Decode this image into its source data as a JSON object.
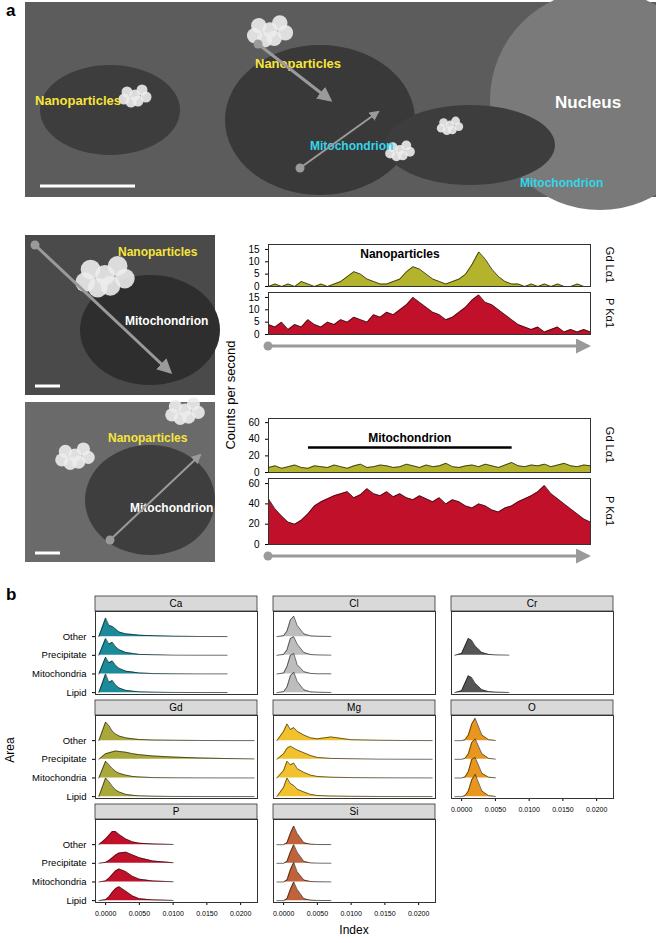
{
  "panel_labels": [
    "a",
    "b"
  ],
  "micrographs": [
    {
      "labels": [
        "Nanoparticles",
        "Nanoparticles",
        "Mitochondrion",
        "Mitochondrion",
        "Nucleus"
      ]
    },
    {
      "labels": [
        "Nanoparticles",
        "Mitochondrion"
      ]
    },
    {
      "labels": [
        "Nanoparticles",
        "Mitochondrion"
      ]
    }
  ],
  "chart_data": [
    {
      "type": "area",
      "y_label": "Counts per second",
      "tick_labels": "y",
      "xlim": [
        0,
        49
      ],
      "ylim": [
        0,
        17
      ],
      "yticks": [
        0,
        5,
        10,
        15
      ],
      "annotations": [
        {
          "text": "Nanoparticles",
          "x": 20,
          "y": 13
        }
      ],
      "series": [
        {
          "name": "Gd Lα1",
          "color": "#b3b32e",
          "values": [
            0,
            1,
            0,
            1,
            0,
            2,
            1,
            0,
            1,
            0,
            1,
            2,
            4,
            6,
            5,
            3,
            2,
            1,
            1,
            2,
            3,
            6,
            8,
            7,
            5,
            3,
            2,
            1,
            2,
            3,
            5,
            9,
            14,
            11,
            7,
            4,
            2,
            1,
            1,
            0,
            1,
            0,
            1,
            0,
            1,
            0,
            0,
            1,
            0,
            0
          ]
        },
        {
          "name": "P Kα1",
          "color": "#c0102a",
          "values": [
            4,
            3,
            5,
            2,
            4,
            3,
            6,
            4,
            3,
            5,
            4,
            6,
            5,
            7,
            6,
            5,
            8,
            7,
            9,
            8,
            10,
            12,
            15,
            13,
            11,
            9,
            8,
            6,
            7,
            9,
            11,
            14,
            16,
            13,
            12,
            10,
            8,
            6,
            4,
            3,
            2,
            3,
            1,
            2,
            3,
            1,
            2,
            1,
            2,
            1
          ]
        }
      ]
    },
    {
      "type": "area",
      "tick_labels": "y",
      "xlim": [
        0,
        49
      ],
      "ylim": [
        0,
        65
      ],
      "yticks": [
        0,
        20,
        40,
        60
      ],
      "annotations": [
        {
          "text": "Mitochondrion",
          "x": [
            6,
            37
          ],
          "y": 30
        }
      ],
      "series": [
        {
          "name": "Gd Lα1",
          "color": "#b3b32e",
          "values": [
            6,
            8,
            5,
            7,
            9,
            6,
            5,
            8,
            7,
            6,
            9,
            7,
            5,
            8,
            10,
            6,
            7,
            9,
            8,
            6,
            7,
            10,
            8,
            6,
            9,
            7,
            8,
            11,
            7,
            6,
            8,
            9,
            7,
            10,
            8,
            6,
            9,
            12,
            8,
            7,
            9,
            8,
            10,
            7,
            9,
            11,
            8,
            7,
            9,
            8
          ]
        },
        {
          "name": "P Kα1",
          "color": "#c0102a",
          "values": [
            45,
            35,
            28,
            22,
            20,
            24,
            30,
            38,
            42,
            45,
            48,
            50,
            52,
            46,
            49,
            55,
            50,
            48,
            52,
            47,
            50,
            46,
            44,
            48,
            45,
            42,
            46,
            40,
            44,
            42,
            38,
            36,
            40,
            38,
            34,
            32,
            36,
            38,
            42,
            45,
            48,
            52,
            58,
            50,
            45,
            40,
            35,
            30,
            25,
            22
          ]
        }
      ]
    },
    {
      "type": "ridgeline",
      "x_label": "Index",
      "y_label": "Area",
      "categories": [
        "Other",
        "Precipitate",
        "Mitochondria",
        "Lipid"
      ],
      "x": [
        -0.001,
        0,
        0.0005,
        0.001,
        0.0015,
        0.002,
        0.003,
        0.004,
        0.005,
        0.007,
        0.01,
        0.014,
        0.018,
        0.022
      ],
      "xlim": [
        -0.0015,
        0.0225
      ],
      "xticks": [
        {
          "value": 0,
          "label": "0.0000"
        },
        {
          "value": 0.005,
          "label": "0.0050"
        },
        {
          "value": 0.01,
          "label": "0.0100"
        },
        {
          "value": 0.015,
          "label": "0.0150"
        },
        {
          "value": 0.02,
          "label": "0.0200"
        }
      ],
      "panels": [
        {
          "name": "Ca",
          "color": "#1b8a99",
          "series": [
            {
              "name": "Other",
              "values": [
                0,
                1.0,
                0.6,
                0.55,
                0.4,
                0.25,
                0.15,
                0.12,
                0.08,
                0.05,
                0.02,
                0.01,
                0.005,
                null
              ]
            },
            {
              "name": "Precipitate",
              "values": [
                0,
                0.9,
                0.6,
                0.7,
                0.45,
                0.3,
                0.15,
                0.1,
                0.05,
                0.03,
                0.01,
                0.005,
                0.005,
                null
              ]
            },
            {
              "name": "Mitochondria",
              "values": [
                0,
                0.9,
                0.6,
                0.7,
                0.45,
                0.3,
                0.15,
                0.1,
                0.05,
                0.02,
                0.01,
                0.005,
                0.005,
                null
              ]
            },
            {
              "name": "Lipid",
              "values": [
                0,
                1.0,
                0.55,
                0.65,
                0.4,
                0.25,
                0.12,
                0.08,
                0.04,
                0.02,
                0.01,
                0.005,
                0.005,
                null
              ]
            }
          ]
        },
        {
          "name": "Cl",
          "color": "#bdbdbd",
          "series": [
            {
              "name": "Other",
              "values": [
                0,
                0.05,
                0.3,
                0.9,
                1.1,
                0.6,
                0.15,
                0.04,
                0.02,
                0.01,
                null,
                null,
                null,
                null
              ]
            },
            {
              "name": "Precipitate",
              "values": [
                0,
                0.05,
                0.3,
                0.9,
                1.0,
                0.6,
                0.15,
                0.04,
                0.02,
                0.01,
                null,
                null,
                null,
                null
              ]
            },
            {
              "name": "Mitochondria",
              "values": [
                0,
                0.05,
                0.4,
                1.0,
                1.1,
                0.5,
                0.12,
                0.03,
                0.01,
                0.01,
                null,
                null,
                null,
                null
              ]
            },
            {
              "name": "Lipid",
              "values": [
                0,
                0.05,
                0.3,
                0.9,
                1.1,
                0.6,
                0.15,
                0.04,
                0.02,
                0.01,
                null,
                null,
                null,
                null
              ]
            }
          ]
        },
        {
          "name": "Cr",
          "color": "#555555",
          "series": [
            {
              "name": "Precipitate",
              "values": [
                0,
                0.1,
                0.5,
                0.9,
                0.8,
                0.5,
                0.15,
                0.05,
                0.02,
                0.01,
                null,
                null,
                null,
                null
              ]
            },
            {
              "name": "Lipid",
              "values": [
                0,
                0.1,
                0.5,
                0.9,
                0.8,
                0.5,
                0.15,
                0.05,
                0.02,
                0.01,
                null,
                null,
                null,
                null
              ]
            }
          ]
        },
        {
          "name": "Gd",
          "color": "#a9a83a",
          "series": [
            {
              "name": "Other",
              "values": [
                0,
                1.0,
                0.8,
                0.5,
                0.35,
                0.25,
                0.15,
                0.1,
                0.06,
                0.03,
                0.02,
                0.01,
                0.005,
                0.003
              ]
            },
            {
              "name": "Precipitate",
              "values": [
                0,
                0.3,
                0.35,
                0.4,
                0.45,
                0.42,
                0.38,
                0.3,
                0.25,
                0.18,
                0.12,
                0.07,
                0.04,
                0.02
              ]
            },
            {
              "name": "Mitochondria",
              "values": [
                0,
                0.9,
                0.7,
                0.5,
                0.35,
                0.25,
                0.15,
                0.08,
                0.05,
                0.02,
                0.01,
                0.005,
                0.003,
                0.002
              ]
            },
            {
              "name": "Lipid",
              "values": [
                0,
                1.0,
                0.8,
                0.55,
                0.35,
                0.25,
                0.12,
                0.07,
                0.04,
                0.02,
                0.01,
                0.005,
                0.003,
                0.002
              ]
            }
          ]
        },
        {
          "name": "Mg",
          "color": "#f2c12e",
          "series": [
            {
              "name": "Other",
              "values": [
                0,
                0.5,
                0.9,
                0.6,
                0.7,
                0.5,
                0.3,
                0.15,
                0.1,
                0.2,
                0.05,
                0.02,
                0.01,
                0.005
              ]
            },
            {
              "name": "Precipitate",
              "values": [
                0,
                0.3,
                0.6,
                0.7,
                0.6,
                0.5,
                0.35,
                0.2,
                0.1,
                0.05,
                0.03,
                0.01,
                0.005,
                0.003
              ]
            },
            {
              "name": "Mitochondria",
              "values": [
                0,
                0.4,
                0.9,
                0.7,
                0.8,
                0.5,
                0.3,
                0.15,
                0.08,
                0.04,
                0.02,
                0.01,
                0.005,
                0.003
              ]
            },
            {
              "name": "Lipid",
              "values": [
                0,
                0.5,
                1.0,
                0.7,
                0.6,
                0.4,
                0.25,
                0.12,
                0.06,
                0.03,
                0.015,
                0.008,
                0.004,
                0.002
              ]
            }
          ]
        },
        {
          "name": "O",
          "color": "#e8961e",
          "series": [
            {
              "name": "Other",
              "values": [
                0,
                0,
                0.05,
                0.3,
                0.9,
                1.2,
                0.3,
                0.05,
                0.01,
                null,
                null,
                null,
                null,
                null
              ]
            },
            {
              "name": "Precipitate",
              "values": [
                0,
                0,
                0.05,
                0.3,
                0.9,
                1.1,
                0.3,
                0.05,
                0.01,
                null,
                null,
                null,
                null,
                null
              ]
            },
            {
              "name": "Mitochondria",
              "values": [
                0,
                0,
                0.05,
                0.35,
                1.0,
                1.1,
                0.25,
                0.04,
                0.01,
                null,
                null,
                null,
                null,
                null
              ]
            },
            {
              "name": "Lipid",
              "values": [
                0,
                0,
                0.05,
                0.3,
                0.9,
                1.2,
                0.3,
                0.05,
                0.01,
                null,
                null,
                null,
                null,
                null
              ]
            }
          ]
        },
        {
          "name": "P",
          "color": "#c0102a",
          "series": [
            {
              "name": "Other",
              "values": [
                0,
                0.3,
                0.5,
                0.7,
                0.7,
                0.55,
                0.3,
                0.15,
                0.08,
                0.03,
                0.01,
                null,
                null,
                null
              ]
            },
            {
              "name": "Precipitate",
              "values": [
                0,
                0.05,
                0.15,
                0.3,
                0.45,
                0.55,
                0.6,
                0.45,
                0.3,
                0.12,
                0.03,
                null,
                null,
                null
              ]
            },
            {
              "name": "Mitochondria",
              "values": [
                0,
                0.05,
                0.2,
                0.4,
                0.6,
                0.7,
                0.55,
                0.3,
                0.15,
                0.05,
                0.01,
                null,
                null,
                null
              ]
            },
            {
              "name": "Lipid",
              "values": [
                0,
                0.05,
                0.2,
                0.45,
                0.65,
                0.75,
                0.5,
                0.25,
                0.1,
                0.04,
                0.01,
                null,
                null,
                null
              ]
            }
          ]
        },
        {
          "name": "Si",
          "color": "#c0623a",
          "series": [
            {
              "name": "Other",
              "values": [
                0,
                0,
                0.1,
                0.6,
                1.0,
                0.6,
                0.1,
                0.02,
                0.01,
                0.005,
                null,
                null,
                null,
                null
              ]
            },
            {
              "name": "Precipitate",
              "values": [
                0,
                0,
                0.1,
                0.6,
                1.0,
                0.6,
                0.1,
                0.02,
                0.01,
                0.005,
                null,
                null,
                null,
                null
              ]
            },
            {
              "name": "Mitochondria",
              "values": [
                0,
                0,
                0.1,
                0.65,
                1.05,
                0.55,
                0.1,
                0.02,
                0.01,
                0.005,
                null,
                null,
                null,
                null
              ]
            },
            {
              "name": "Lipid",
              "values": [
                0,
                0,
                0.1,
                0.6,
                1.0,
                0.6,
                0.1,
                0.02,
                0.01,
                0.005,
                null,
                null,
                null,
                null
              ]
            }
          ]
        }
      ]
    }
  ]
}
